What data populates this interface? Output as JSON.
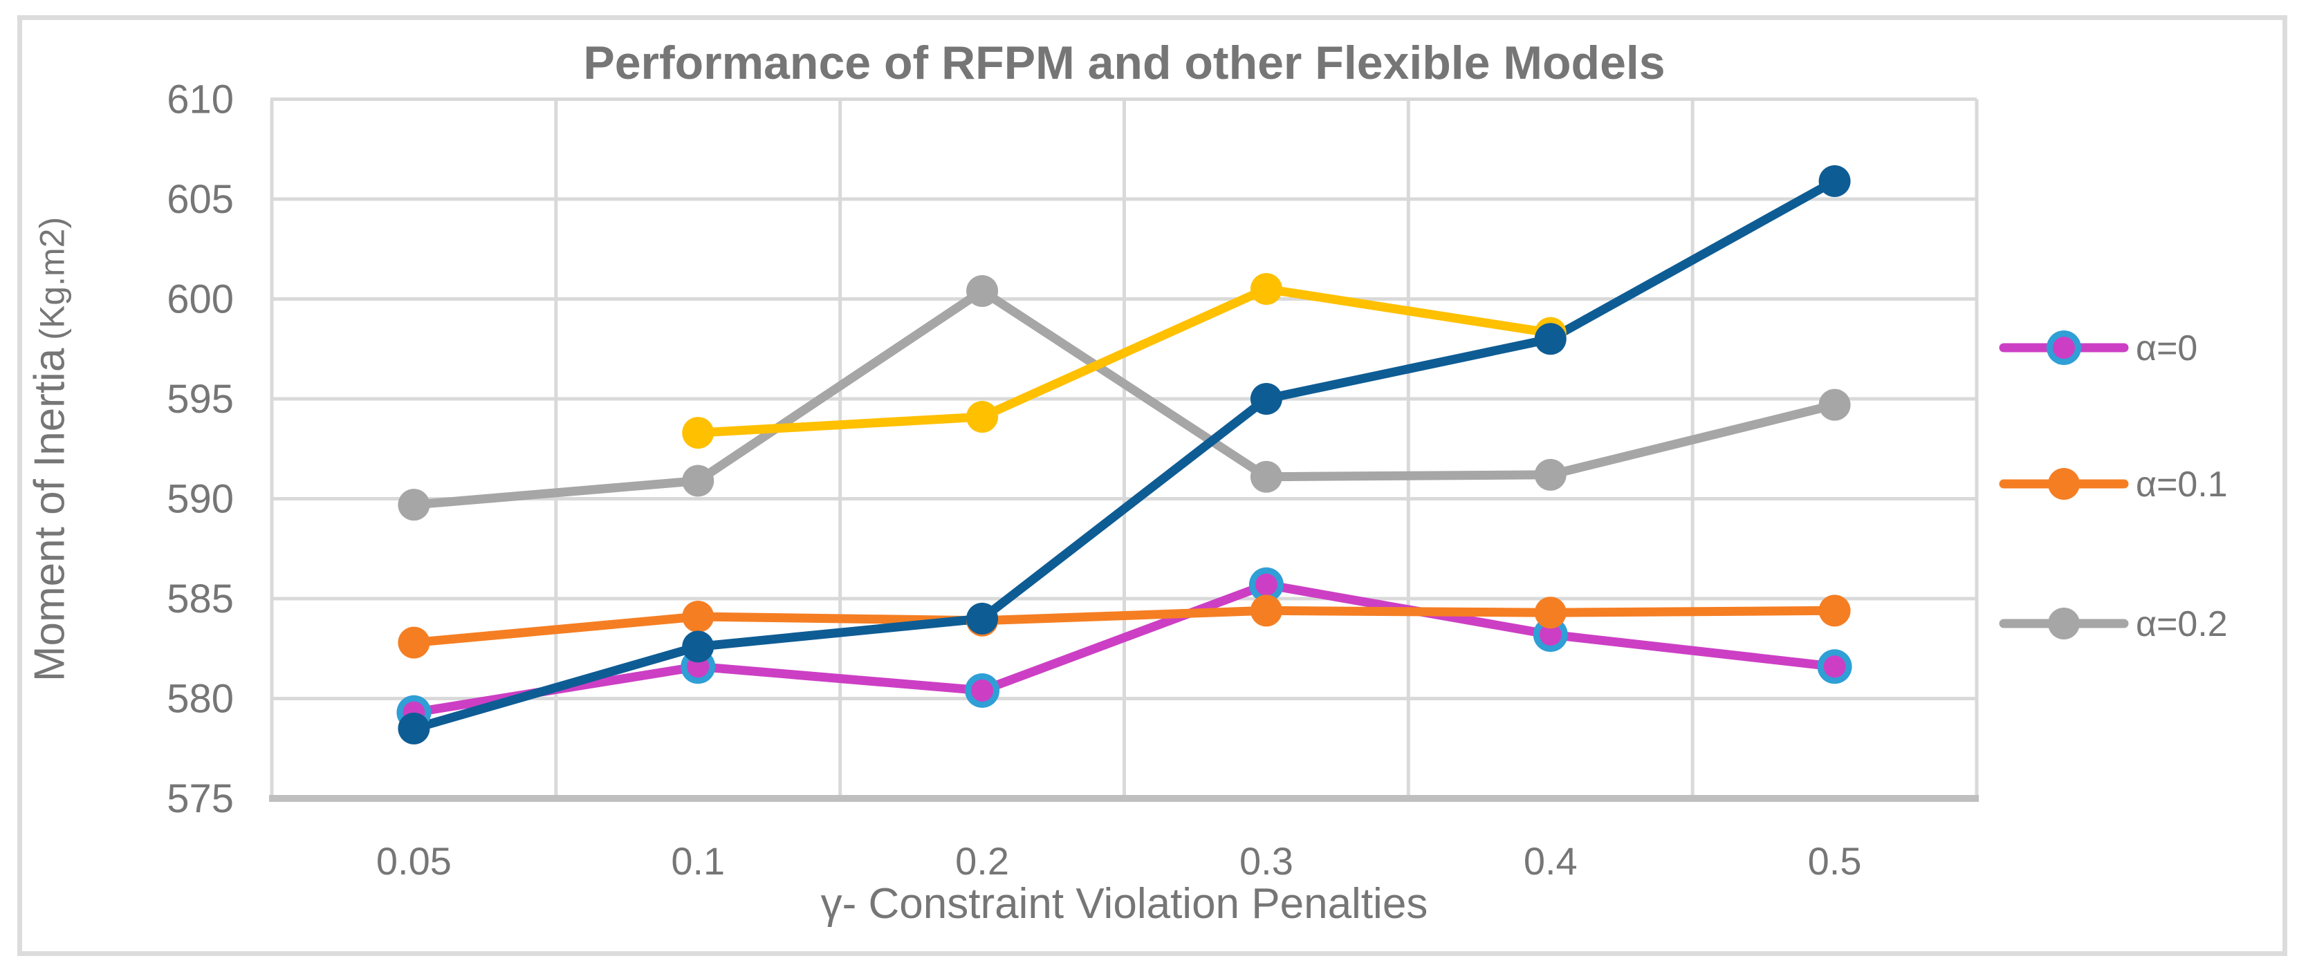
{
  "chart_data": {
    "type": "line",
    "title": "Performance of RFPM and other Flexible Models",
    "xlabel": "γ- Constraint Violation Penalties",
    "ylabel": "Moment of Inertia",
    "ylabel_unit": "(Kg.m2)",
    "x_categories": [
      "0.05",
      "0.1",
      "0.2",
      "0.3",
      "0.4",
      "0.5"
    ],
    "y_ticks": [
      575,
      580,
      585,
      590,
      595,
      600,
      605,
      610
    ],
    "ylim": [
      575,
      610
    ],
    "grid": true,
    "legend_position": "right",
    "series": [
      {
        "name": "α=0",
        "in_legend": true,
        "color": "#CC3FC4",
        "marker": "ring",
        "marker_ring_color": "#2F9FD6",
        "values": [
          579.3,
          581.6,
          580.4,
          585.7,
          583.2,
          581.6
        ]
      },
      {
        "name": "α=0.1",
        "in_legend": true,
        "color": "#F57E23",
        "marker": "circle",
        "values": [
          582.8,
          584.1,
          583.9,
          584.4,
          584.3,
          584.4
        ]
      },
      {
        "name": "α=0.2",
        "in_legend": true,
        "color": "#A6A6A6",
        "marker": "circle",
        "values": [
          589.7,
          590.9,
          600.4,
          591.1,
          591.2,
          594.7
        ]
      },
      {
        "name": "series-yellow",
        "in_legend": false,
        "color": "#FFC000",
        "marker": "circle",
        "values": [
          null,
          593.3,
          594.1,
          600.5,
          598.3,
          null
        ]
      },
      {
        "name": "series-navy",
        "in_legend": false,
        "color": "#0E5C94",
        "marker": "circle",
        "values": [
          578.5,
          582.6,
          584.0,
          595.0,
          598.0,
          605.9
        ]
      }
    ],
    "colors": {
      "gridline": "#D9D9D9",
      "axis_line": "#BFBFBF",
      "text": "#767676",
      "frame_border": "#DCDCDC",
      "background": "#FFFFFF"
    }
  }
}
